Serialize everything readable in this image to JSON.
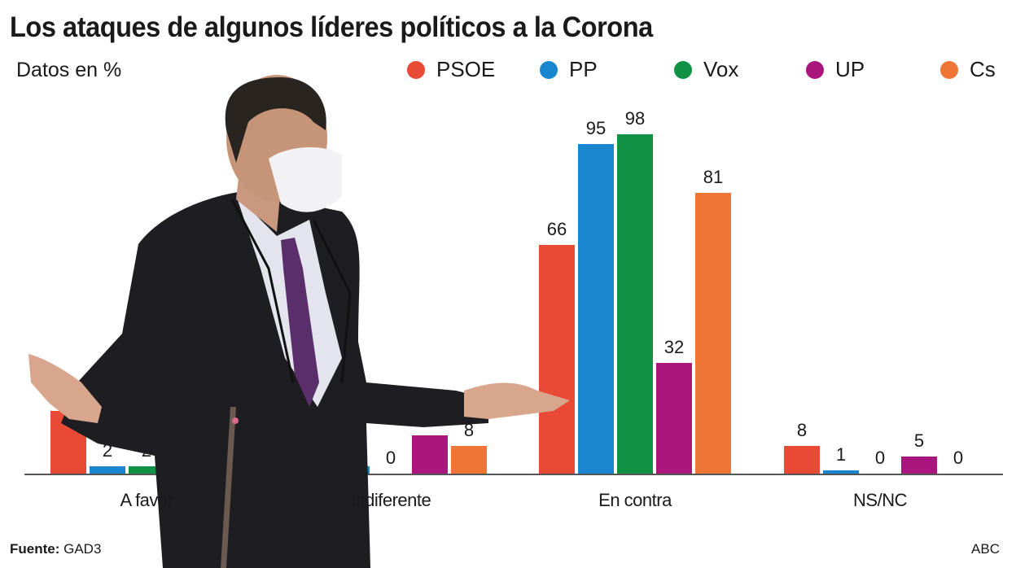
{
  "header": {
    "title": "Los ataques de algunos líderes políticos a la Corona",
    "subtitle": "Datos en %"
  },
  "legend": [
    {
      "label": "PSOE",
      "color": "#e84a35"
    },
    {
      "label": "PP",
      "color": "#1a86cf"
    },
    {
      "label": "Vox",
      "color": "#0f9245"
    },
    {
      "label": "UP",
      "color": "#ab167e"
    },
    {
      "label": "Cs",
      "color": "#ee7535"
    }
  ],
  "footer": {
    "source_label": "Fuente:",
    "source_value": "GAD3",
    "credit": "ABC"
  },
  "chart_data": {
    "type": "bar",
    "title": "Los ataques de algunos líderes políticos a la Corona",
    "subtitle": "Datos en %",
    "categories": [
      "A favor",
      "Indiferente",
      "En contra",
      "NS/NC"
    ],
    "category_labels_visible": [
      "A favo",
      "iferente",
      "En contra",
      "NS/NC"
    ],
    "series": [
      {
        "name": "PSOE",
        "color": "#e84a35",
        "values": [
          18,
          null,
          66,
          8
        ],
        "labels": [
          "",
          "",
          "66",
          "8"
        ]
      },
      {
        "name": "PP",
        "color": "#1a86cf",
        "values": [
          2,
          2,
          95,
          1
        ],
        "labels": [
          "2",
          "2",
          "95",
          "1"
        ]
      },
      {
        "name": "Vox",
        "color": "#0f9245",
        "values": [
          2,
          0,
          98,
          0
        ],
        "labels": [
          "2",
          "0",
          "98",
          "0"
        ]
      },
      {
        "name": "UP",
        "color": "#ab167e",
        "values": [
          null,
          11,
          32,
          5
        ],
        "labels": [
          "",
          "",
          "32",
          "5"
        ]
      },
      {
        "name": "Cs",
        "color": "#ee7535",
        "values": [
          null,
          8,
          81,
          0
        ],
        "labels": [
          "",
          "8",
          "81",
          "0"
        ]
      }
    ],
    "xlabel": "",
    "ylabel": "%",
    "ylim": [
      0,
      100
    ],
    "grid": false,
    "legend_position": "top-right",
    "annotations": [
      "Some bars partially hidden by an overlaid photo of a politician"
    ]
  }
}
